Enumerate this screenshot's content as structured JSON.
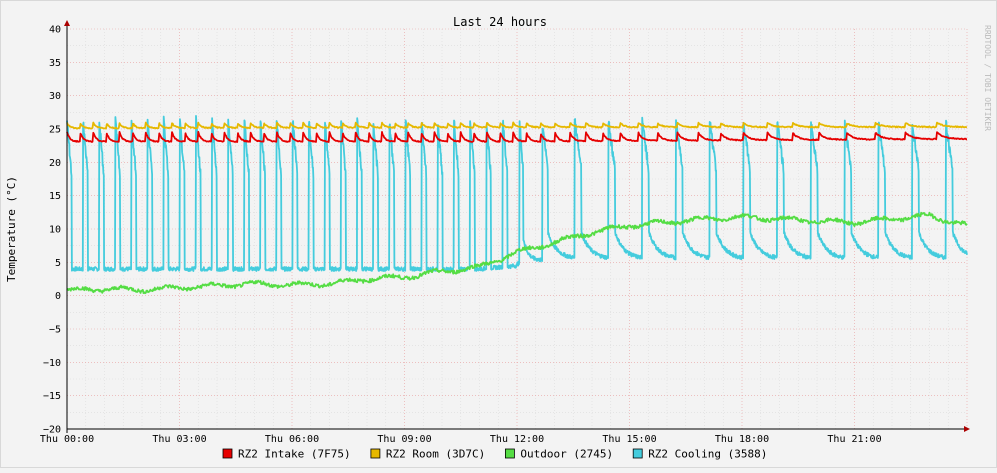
{
  "chart_data": {
    "type": "line",
    "title": "Last 24 hours",
    "ylabel": "Temperature (°C)",
    "watermark": "RRDTOOL / TOBI OETIKER",
    "xlim": [
      0,
      24
    ],
    "ylim": [
      -20,
      40
    ],
    "yticks": [
      40,
      35,
      30,
      25,
      20,
      15,
      10,
      5,
      0,
      -5,
      -10,
      -15,
      -20
    ],
    "ytick_labels": [
      "40",
      "35",
      "30",
      "25",
      "20",
      "15",
      "10",
      "5",
      "0",
      "−5",
      "−10",
      "−15",
      "−20"
    ],
    "xticks": [
      0,
      3,
      6,
      9,
      12,
      15,
      18,
      21
    ],
    "xtick_labels": [
      "Thu 00:00",
      "Thu 03:00",
      "Thu 06:00",
      "Thu 09:00",
      "Thu 12:00",
      "Thu 15:00",
      "Thu 18:00",
      "Thu 21:00"
    ],
    "grid": true,
    "legend_position": "bottom",
    "x_unit": "hours",
    "series": [
      {
        "name": "RZ2 Intake (7F75)",
        "color": "#e60000",
        "x": [
          0,
          12,
          24
        ],
        "y": [
          23.8,
          23.8,
          24.0
        ],
        "pattern": "sawtooth",
        "period_h": [
          0.35,
          0.35,
          0.9
        ],
        "amplitude": [
          1.4,
          1.4,
          1.0
        ]
      },
      {
        "name": "RZ2 Room (3D7C)",
        "color": "#e6b800",
        "x": [
          0,
          12,
          24
        ],
        "y": [
          25.5,
          25.6,
          25.6
        ],
        "pattern": "sawtooth",
        "period_h": [
          0.35,
          0.35,
          0.9
        ],
        "amplitude": [
          0.8,
          0.7,
          0.6
        ]
      },
      {
        "name": "Outdoor (2745)",
        "color": "#55dd44",
        "x": [
          0,
          1,
          2,
          3,
          4,
          5,
          6,
          7,
          8,
          9,
          10,
          11,
          12,
          13,
          14,
          15,
          16,
          17,
          18,
          19,
          20,
          21,
          22,
          23,
          24
        ],
        "y": [
          0.8,
          1.0,
          0.9,
          1.2,
          1.5,
          1.8,
          1.6,
          1.8,
          2.5,
          2.8,
          3.6,
          4.3,
          6.5,
          8.0,
          9.5,
          10.5,
          11.0,
          11.5,
          11.8,
          11.5,
          11.2,
          11.0,
          11.5,
          12.0,
          10.5
        ],
        "pattern": "smooth"
      },
      {
        "name": "RZ2 Cooling (3588)",
        "color": "#44ccdd",
        "x": [
          0,
          11,
          12,
          13,
          24
        ],
        "y_low": [
          4,
          4,
          4.5,
          5.5,
          5.5
        ],
        "y_high": [
          27,
          27,
          27,
          27,
          26.5
        ],
        "pattern": "pulse",
        "period_h": [
          0.43,
          0.43,
          0.45,
          0.9,
          0.9
        ]
      }
    ]
  }
}
